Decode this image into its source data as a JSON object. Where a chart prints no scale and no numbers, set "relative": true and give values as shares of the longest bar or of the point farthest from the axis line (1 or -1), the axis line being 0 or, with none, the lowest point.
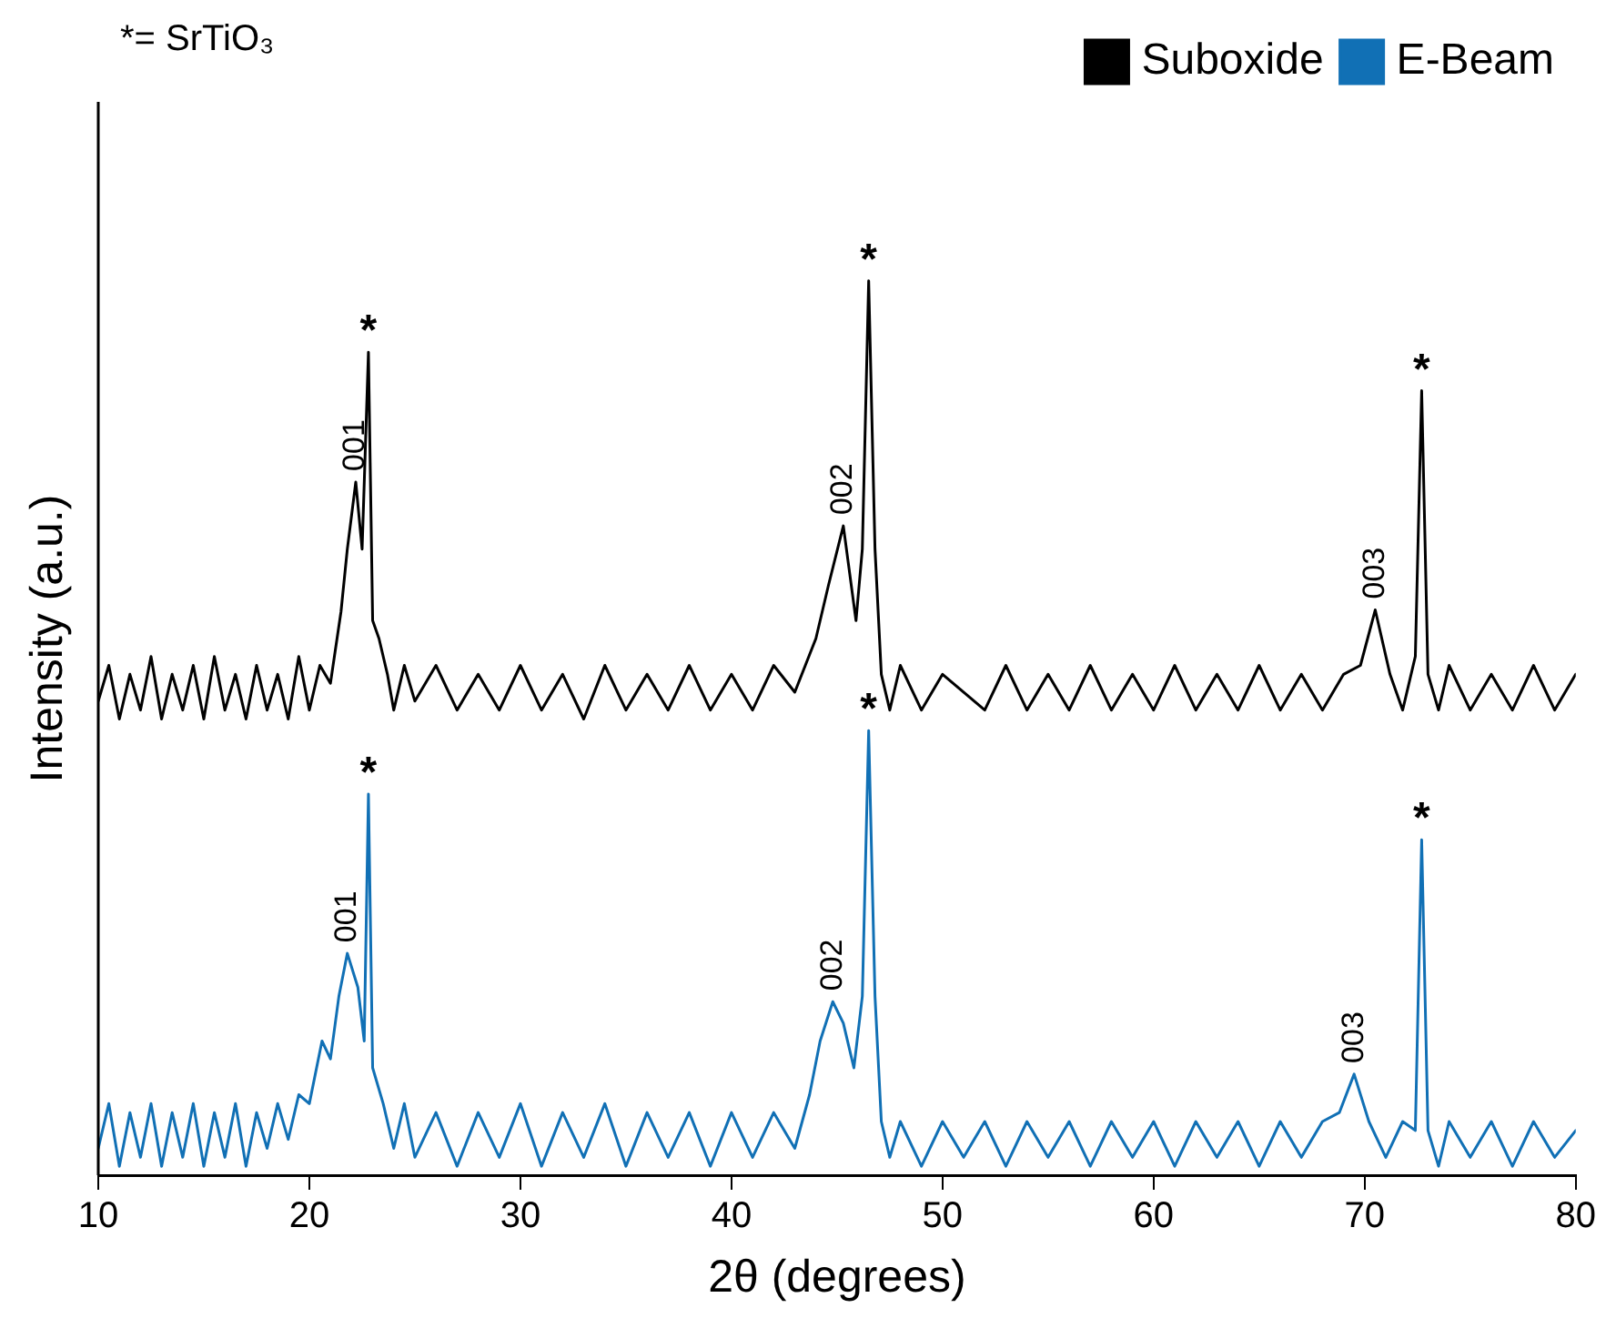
{
  "chart_data": {
    "type": "line",
    "relative": true,
    "xlabel": "2θ (degrees)",
    "ylabel": "Intensity (a.u.)",
    "xlim": [
      10,
      80
    ],
    "xticks": [
      10,
      20,
      30,
      40,
      50,
      60,
      70,
      80
    ],
    "grid": false,
    "legend": "top right",
    "marker": "none",
    "line_style": "solid",
    "annotations": [
      "*= SrTiO₃",
      {
        "text": "001",
        "x": 22.2,
        "y": 0.775
      },
      {
        "text": "*",
        "x": 22.8,
        "y": 0.92
      },
      {
        "text": "002",
        "x": 45.3,
        "y": 0.726
      },
      {
        "text": "*",
        "x": 46.5,
        "y": 1.0
      },
      {
        "text": "003",
        "x": 70.5,
        "y": 0.632
      },
      {
        "text": "*",
        "x": 72.7,
        "y": 0.877
      },
      {
        "text": "001",
        "x": 21.8,
        "y": 0.248
      },
      {
        "text": "*",
        "x": 22.8,
        "y": 0.426
      },
      {
        "text": "002",
        "x": 44.8,
        "y": 0.194
      },
      {
        "text": "*",
        "x": 46.5,
        "y": 0.497
      },
      {
        "text": "003",
        "x": 69.5,
        "y": 0.113
      },
      {
        "text": "*",
        "x": 72.7,
        "y": 0.375
      }
    ],
    "series": [
      {
        "name": "Suboxide",
        "color": "#000000",
        "x": [
          10,
          10.5,
          11,
          11.5,
          12,
          12.5,
          13,
          13.5,
          14,
          14.5,
          15,
          15.5,
          16,
          16.5,
          17,
          17.5,
          18,
          18.5,
          19,
          19.5,
          20,
          20.5,
          21,
          21.5,
          21.8,
          22.2,
          22.5,
          22.8,
          23,
          23.3,
          23.7,
          24,
          24.5,
          25,
          26,
          27,
          28,
          29,
          30,
          31,
          32,
          33,
          34,
          35,
          36,
          37,
          38,
          39,
          40,
          41,
          42,
          43,
          43.5,
          44,
          44.6,
          45.3,
          45.9,
          46.2,
          46.5,
          46.8,
          47.1,
          47.5,
          48,
          49,
          50,
          52,
          53,
          54,
          55,
          56,
          57,
          58,
          59,
          60,
          61,
          62,
          63,
          64,
          65,
          66,
          67,
          68,
          69,
          69.8,
          70.5,
          71.2,
          71.8,
          72.4,
          72.7,
          73,
          73.5,
          74,
          75,
          76,
          77,
          78,
          79,
          80
        ],
        "values": [
          0.53,
          0.57,
          0.51,
          0.56,
          0.52,
          0.58,
          0.51,
          0.56,
          0.52,
          0.57,
          0.51,
          0.58,
          0.52,
          0.56,
          0.51,
          0.57,
          0.52,
          0.56,
          0.51,
          0.58,
          0.52,
          0.57,
          0.55,
          0.63,
          0.7,
          0.775,
          0.7,
          0.92,
          0.62,
          0.6,
          0.56,
          0.52,
          0.57,
          0.53,
          0.57,
          0.52,
          0.56,
          0.52,
          0.57,
          0.52,
          0.56,
          0.51,
          0.57,
          0.52,
          0.56,
          0.52,
          0.57,
          0.52,
          0.56,
          0.52,
          0.57,
          0.54,
          0.57,
          0.6,
          0.66,
          0.726,
          0.62,
          0.7,
          1.0,
          0.7,
          0.56,
          0.52,
          0.57,
          0.52,
          0.56,
          0.52,
          0.57,
          0.52,
          0.56,
          0.52,
          0.57,
          0.52,
          0.56,
          0.52,
          0.57,
          0.52,
          0.56,
          0.52,
          0.57,
          0.52,
          0.56,
          0.52,
          0.56,
          0.57,
          0.632,
          0.56,
          0.52,
          0.58,
          0.877,
          0.56,
          0.52,
          0.57,
          0.52,
          0.56,
          0.52,
          0.57,
          0.52,
          0.56
        ]
      },
      {
        "name": "E-Beam",
        "color": "#1170b5",
        "x": [
          10,
          10.5,
          11,
          11.5,
          12,
          12.5,
          13,
          13.5,
          14,
          14.5,
          15,
          15.5,
          16,
          16.5,
          17,
          17.5,
          18,
          18.5,
          19,
          19.5,
          20,
          20.6,
          21,
          21.4,
          21.8,
          22.3,
          22.6,
          22.8,
          23,
          23.5,
          24,
          24.5,
          25,
          26,
          27,
          28,
          29,
          30,
          31,
          32,
          33,
          34,
          35,
          36,
          37,
          38,
          39,
          40,
          41,
          42,
          43,
          43.7,
          44.2,
          44.8,
          45.3,
          45.8,
          46.2,
          46.5,
          46.8,
          47.1,
          47.5,
          48,
          49,
          50,
          51,
          52,
          53,
          54,
          55,
          56,
          57,
          58,
          59,
          60,
          61,
          62,
          63,
          64,
          65,
          66,
          67,
          68,
          68.8,
          69.5,
          70.2,
          71,
          71.8,
          72.4,
          72.7,
          73,
          73.5,
          74,
          75,
          76,
          77,
          78,
          79,
          80
        ],
        "values": [
          0.03,
          0.08,
          0.01,
          0.07,
          0.02,
          0.08,
          0.01,
          0.07,
          0.02,
          0.08,
          0.01,
          0.07,
          0.02,
          0.08,
          0.01,
          0.07,
          0.03,
          0.08,
          0.04,
          0.09,
          0.08,
          0.15,
          0.13,
          0.2,
          0.248,
          0.21,
          0.15,
          0.426,
          0.12,
          0.08,
          0.03,
          0.08,
          0.02,
          0.07,
          0.01,
          0.07,
          0.02,
          0.08,
          0.01,
          0.07,
          0.02,
          0.08,
          0.01,
          0.07,
          0.02,
          0.07,
          0.01,
          0.07,
          0.02,
          0.07,
          0.03,
          0.09,
          0.15,
          0.194,
          0.17,
          0.12,
          0.2,
          0.497,
          0.2,
          0.06,
          0.02,
          0.06,
          0.01,
          0.06,
          0.02,
          0.06,
          0.01,
          0.06,
          0.02,
          0.06,
          0.01,
          0.06,
          0.02,
          0.06,
          0.01,
          0.06,
          0.02,
          0.06,
          0.01,
          0.06,
          0.02,
          0.06,
          0.07,
          0.113,
          0.06,
          0.02,
          0.06,
          0.05,
          0.375,
          0.05,
          0.01,
          0.06,
          0.02,
          0.06,
          0.01,
          0.06,
          0.02,
          0.05
        ]
      }
    ]
  }
}
